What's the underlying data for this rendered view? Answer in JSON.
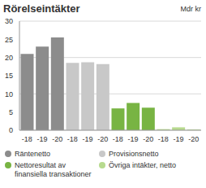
{
  "chart_data": {
    "type": "bar",
    "title": "Rörelseintäkter",
    "subtitle": "Mdr kr",
    "categories": [
      "-18",
      "-19",
      "-20",
      "-18",
      "-19",
      "-20",
      "-18",
      "-19",
      "-20",
      "-18",
      "-19",
      "-20"
    ],
    "series": [
      {
        "name": "Räntenetto",
        "color": "#8c8c8c",
        "values": [
          21,
          23,
          25.5,
          null,
          null,
          null,
          null,
          null,
          null,
          null,
          null,
          null
        ]
      },
      {
        "name": "Provisionsnetto",
        "color": "#c8c8c8",
        "values": [
          null,
          null,
          null,
          18.5,
          18.7,
          18.2,
          null,
          null,
          null,
          null,
          null,
          null
        ]
      },
      {
        "name": "Nettoresultat av finansiella transaktioner",
        "color": "#78b443",
        "values": [
          null,
          null,
          null,
          null,
          null,
          null,
          6,
          7.5,
          6.2,
          null,
          null,
          null
        ]
      },
      {
        "name": "Övriga intäkter, netto",
        "color": "#b7da8e",
        "values": [
          null,
          null,
          null,
          null,
          null,
          null,
          null,
          null,
          null,
          0.3,
          0.8,
          0.2
        ]
      }
    ],
    "ylim": [
      0,
      30
    ],
    "yticks": [
      0,
      5,
      10,
      15,
      20,
      25,
      30
    ],
    "grid": true,
    "stacked": true
  }
}
